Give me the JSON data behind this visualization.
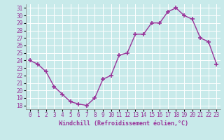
{
  "x": [
    0,
    1,
    2,
    3,
    4,
    5,
    6,
    7,
    8,
    9,
    10,
    11,
    12,
    13,
    14,
    15,
    16,
    17,
    18,
    19,
    20,
    21,
    22,
    23
  ],
  "y": [
    24,
    23.5,
    22.5,
    20.5,
    19.5,
    18.5,
    18.2,
    18.0,
    19.0,
    21.5,
    22.0,
    24.7,
    25.0,
    27.5,
    27.5,
    29.0,
    29.0,
    30.5,
    31.0,
    30.0,
    29.5,
    27.0,
    26.5,
    23.5
  ],
  "line_color": "#993399",
  "marker": "+",
  "marker_size": 4,
  "marker_linewidth": 1.2,
  "bg_color": "#c8eaea",
  "grid_color": "#b0d0d0",
  "xlabel": "Windchill (Refroidissement éolien,°C)",
  "ylabel_ticks": [
    18,
    19,
    20,
    21,
    22,
    23,
    24,
    25,
    26,
    27,
    28,
    29,
    30,
    31
  ],
  "xlabel_ticks": [
    0,
    1,
    2,
    3,
    4,
    5,
    6,
    7,
    8,
    9,
    10,
    11,
    12,
    13,
    14,
    15,
    16,
    17,
    18,
    19,
    20,
    21,
    22,
    23
  ],
  "xlim": [
    -0.5,
    23.5
  ],
  "ylim": [
    17.5,
    31.5
  ],
  "xlabel_color": "#993399",
  "tick_color": "#993399"
}
